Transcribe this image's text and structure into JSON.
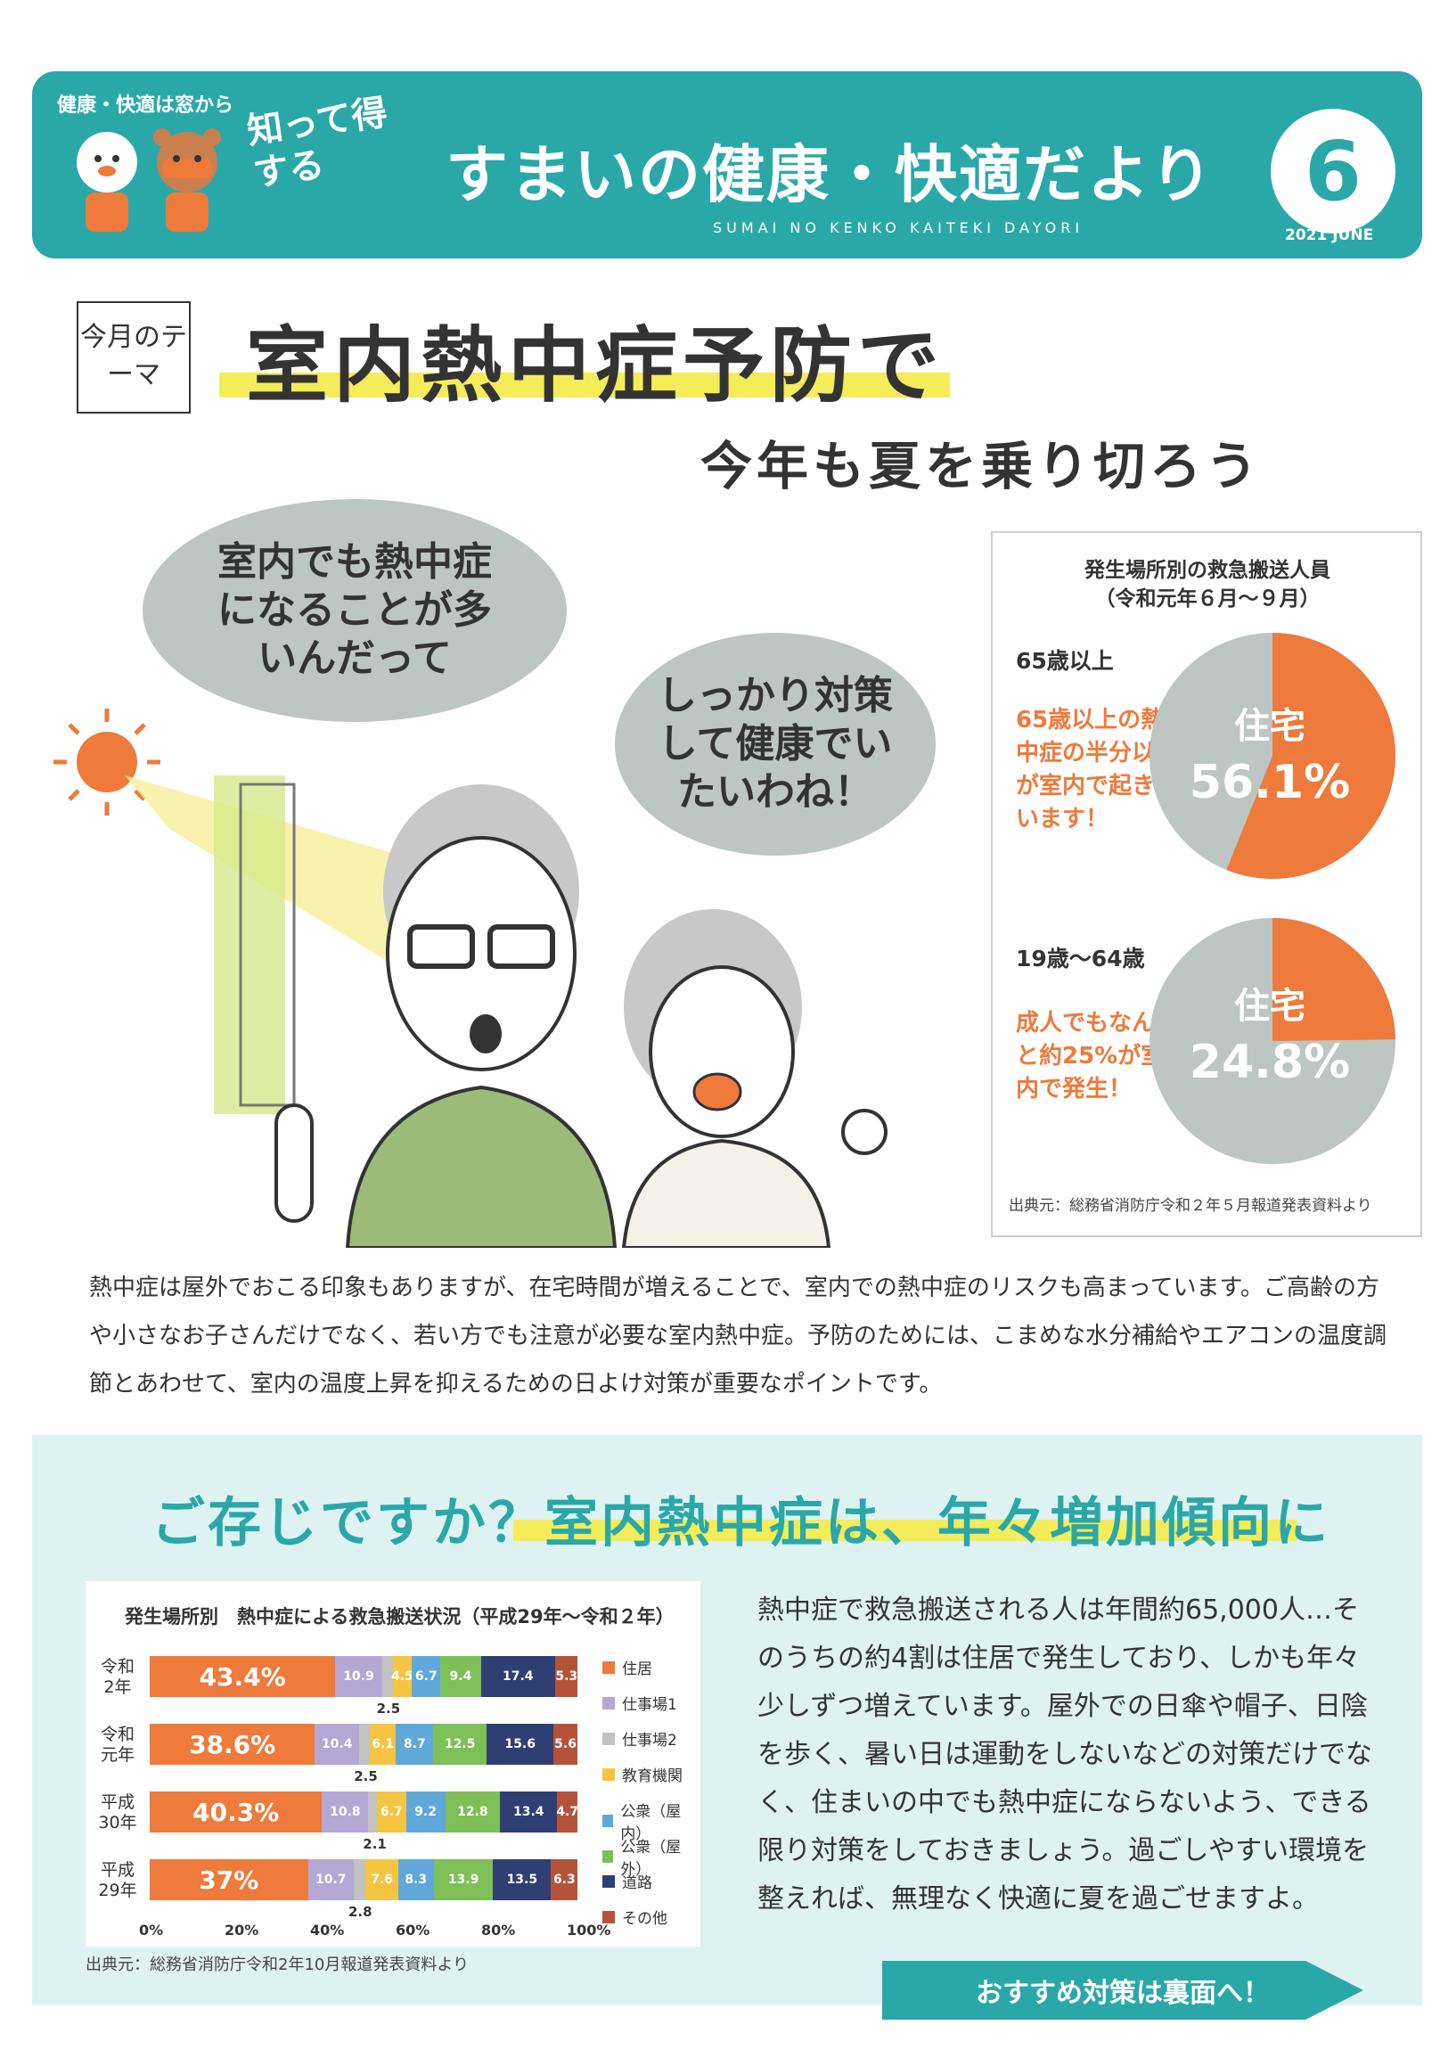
{
  "header": {
    "small_label": "健康・快適は窓から",
    "tagline": "知って得する",
    "title": "すまいの健康・快適だより",
    "roman": "SUMAI NO KENKO KAITEKI DAYORI",
    "issue_number": "6",
    "date": "2021 JUNE"
  },
  "theme": {
    "label": "今月のテーマ",
    "title_main": "室内熱中症予防で",
    "title_sub": "今年も夏を乗り切ろう"
  },
  "bubbles": {
    "left": "室内でも熱中症になることが多いんだって",
    "right": "しっかり対策して健康でいたいわね！"
  },
  "pie_box": {
    "title_line1": "発生場所別の救急搬送人員",
    "title_line2": "（令和元年６月〜９月）",
    "pies": [
      {
        "age": "65歳以上",
        "note": "65歳以上の熱中症の半分以上が室内で起きています！",
        "label": "住宅",
        "value_text": "56.1%",
        "value": 56.1
      },
      {
        "age": "19歳〜64歳",
        "note": "成人でもなんと約25%が室内で発生！",
        "label": "住宅",
        "value_text": "24.8%",
        "value": 24.8
      }
    ],
    "source": "出典元：総務省消防庁令和２年５月報道発表資料より",
    "colors": {
      "house": "#ee7a3b",
      "other": "#bdc6c3"
    }
  },
  "body_text": "熱中症は屋外でおこる印象もありますが、在宅時間が増えることで、室内での熱中症のリスクも高まっています。ご高齢の方や小さなお子さんだけでなく、若い方でも注意が必要な室内熱中症。予防のためには、こまめな水分補給やエアコンの温度調節とあわせて、室内の温度上昇を抑えるための日よけ対策が重要なポイントです。",
  "lower": {
    "title": "ご存じですか？室内熱中症は、年々増加傾向に",
    "right_text": "熱中症で救急搬送される人は年間約65,000人…そのうちの約4割は住居で発生しており、しかも年々少しずつ増えています。屋外での日傘や帽子、日陰を歩く、暑い日は運動をしないなどの対策だけでなく、住まいの中でも熱中症にならないよう、できる限り対策をしておきましょう。過ごしやすい環境を整えれば、無理なく快適に夏を過ごせますよ。",
    "cta": "おすすめ対策は裏面へ！",
    "bar_source": "出典元：総務省消防庁令和2年10月報道発表資料より"
  },
  "chart_data": {
    "type": "bar",
    "orientation": "horizontal-stacked-100",
    "title": "発生場所別　熱中症による救急搬送状況（平成29年〜令和２年）",
    "categories": [
      "令和2年",
      "令和元年",
      "平成30年",
      "平成29年"
    ],
    "category_lines": [
      [
        "令和",
        "2年"
      ],
      [
        "令和",
        "元年"
      ],
      [
        "平成",
        "30年"
      ],
      [
        "平成",
        "29年"
      ]
    ],
    "xticks": [
      "0%",
      "20%",
      "40%",
      "60%",
      "80%",
      "100%"
    ],
    "series": [
      {
        "name": "住居",
        "color": "#ee7a3b",
        "values": [
          43.4,
          38.6,
          40.3,
          37
        ],
        "labels": [
          "43.4%",
          "38.6%",
          "40.3%",
          "37%"
        ]
      },
      {
        "name": "仕事場1",
        "color": "#b3a8d4",
        "values": [
          10.9,
          10.4,
          10.8,
          10.7
        ],
        "labels": [
          "10.9",
          "10.4",
          "10.8",
          "10.7"
        ]
      },
      {
        "name": "仕事場2",
        "color": "#c2c2c2",
        "values": [
          2.5,
          2.5,
          2.1,
          2.8
        ],
        "labels": [
          "2.5",
          "2.5",
          "2.1",
          "2.8"
        ]
      },
      {
        "name": "教育機関",
        "color": "#f5c542",
        "values": [
          4.5,
          6.1,
          6.7,
          7.6
        ],
        "labels": [
          "4.5",
          "6.1",
          "6.7",
          "7.6"
        ]
      },
      {
        "name": "公衆（屋内）",
        "color": "#5fa8d9",
        "values": [
          6.7,
          8.7,
          9.2,
          8.3
        ],
        "labels": [
          "6.7",
          "8.7",
          "9.2",
          "8.3"
        ]
      },
      {
        "name": "公衆（屋外）",
        "color": "#7fbf58",
        "values": [
          9.4,
          12.5,
          12.8,
          13.9
        ],
        "labels": [
          "9.4",
          "12.5",
          "12.8",
          "13.9"
        ]
      },
      {
        "name": "道路",
        "color": "#2f3f73",
        "values": [
          17.4,
          15.6,
          13.4,
          13.5
        ],
        "labels": [
          "17.4",
          "15.6",
          "13.4",
          "13.5"
        ]
      },
      {
        "name": "その他",
        "color": "#b5533a",
        "values": [
          5.3,
          5.6,
          4.7,
          6.3
        ],
        "labels": [
          "5.3",
          "5.6",
          "4.7",
          "6.3"
        ]
      }
    ],
    "xlim": [
      0,
      100
    ],
    "legend": "right"
  },
  "colors": {
    "accent": "#2aa8a8",
    "highlight": "#f4ec59",
    "orange": "#ee7a3b"
  }
}
